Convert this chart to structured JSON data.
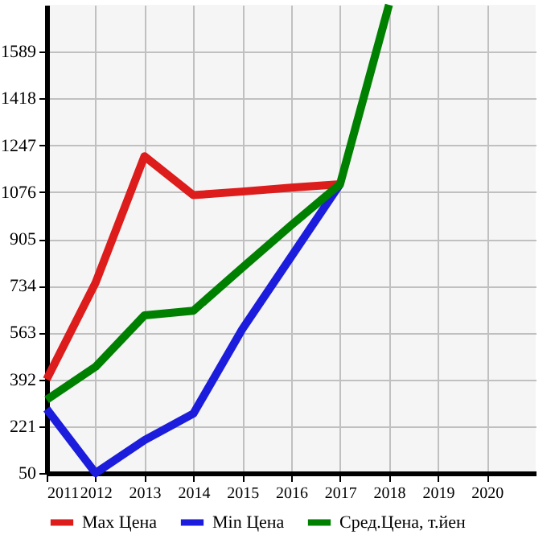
{
  "chart_data": {
    "type": "line",
    "x": [
      2011,
      2012,
      2013,
      2014,
      2015,
      2016,
      2017,
      2018
    ],
    "series": [
      {
        "name": "Max Цена",
        "color": "#dd1c1c",
        "values": [
          392,
          745,
          1207,
          1065,
          1078,
          1092,
          1105,
          null
        ]
      },
      {
        "name": "Min Цена",
        "color": "#1c1cdd",
        "values": [
          284,
          50,
          170,
          267,
          575,
          840,
          1105,
          null
        ]
      },
      {
        "name": "Сред.Цена, т.йен",
        "color": "#008000",
        "values": [
          318,
          438,
          626,
          643,
          800,
          955,
          1105,
          1760
        ]
      }
    ],
    "xlim": [
      2011,
      2021
    ],
    "xticks": [
      2011,
      2012,
      2013,
      2014,
      2015,
      2016,
      2017,
      2018,
      2019,
      2020
    ],
    "ylim": [
      50,
      1760
    ],
    "yticks": [
      50,
      221,
      392,
      563,
      734,
      905,
      1076,
      1247,
      1418,
      1589
    ],
    "grid": true,
    "legend": "bottom",
    "marker": "none",
    "line_style": "solid"
  }
}
